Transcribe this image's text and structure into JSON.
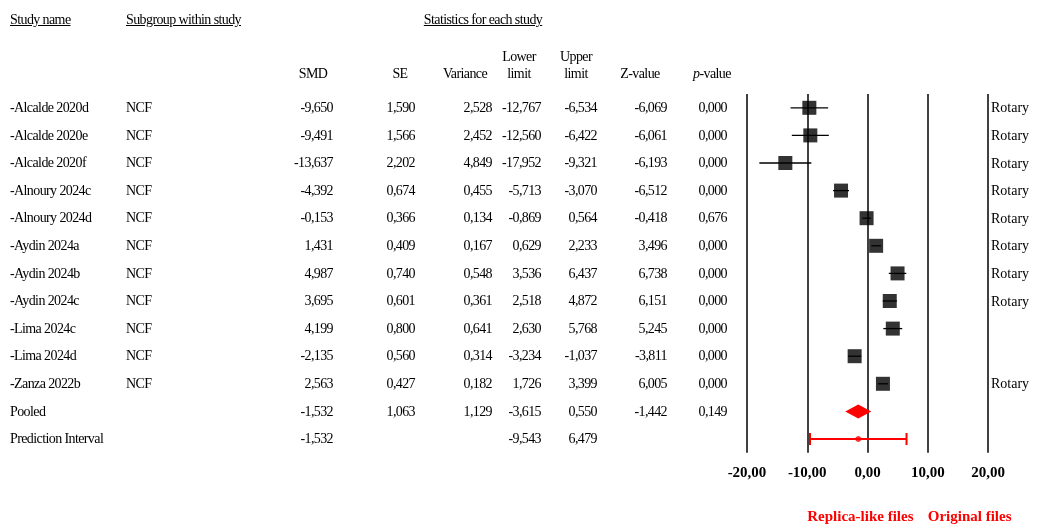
{
  "chart_data": [
    {
      "type": "other",
      "title": "Statistics for each study",
      "annotations": [
        "Study name",
        "Subgroup within study"
      ],
      "categories": [
        "SMD",
        "SE",
        "Variance",
        "Lower limit",
        "Upper limit",
        "Z-value",
        "p-value"
      ],
      "y_categories": [
        "-Alcalde 2020d",
        "-Alcalde 2020e",
        "-Alcalde 2020f",
        "-Alnoury 2024c",
        "-Alnoury 2024d",
        "-Aydin 2024a",
        "-Aydin 2024b",
        "-Aydin 2024c",
        "-Lima 2024c",
        "-Lima 2024d",
        "-Zanza 2022b",
        "Pooled",
        "Prediction Interval"
      ],
      "y2_categories": [
        "NCF",
        "NCF",
        "NCF",
        "NCF",
        "NCF",
        "NCF",
        "NCF",
        "NCF",
        "NCF",
        "NCF",
        "NCF",
        null,
        null
      ],
      "cell_labels": [
        [
          "-9,650",
          "1,590",
          "2,528",
          "-12,767",
          "-6,534",
          "-6,069",
          "0,000"
        ],
        [
          "-9,491",
          "1,566",
          "2,452",
          "-12,560",
          "-6,422",
          "-6,061",
          "0,000"
        ],
        [
          "-13,637",
          "2,202",
          "4,849",
          "-17,952",
          "-9,321",
          "-6,193",
          "0,000"
        ],
        [
          "-4,392",
          "0,674",
          "0,455",
          "-5,713",
          "-3,070",
          "-6,512",
          "0,000"
        ],
        [
          "-0,153",
          "0,366",
          "0,134",
          "-0,869",
          "0,564",
          "-0,418",
          "0,676"
        ],
        [
          "1,431",
          "0,409",
          "0,167",
          "0,629",
          "2,233",
          "3,496",
          "0,000"
        ],
        [
          "4,987",
          "0,740",
          "0,548",
          "3,536",
          "6,437",
          "6,738",
          "0,000"
        ],
        [
          "3,695",
          "0,601",
          "0,361",
          "2,518",
          "4,872",
          "6,151",
          "0,000"
        ],
        [
          "4,199",
          "0,800",
          "0,641",
          "2,630",
          "5,768",
          "5,245",
          "0,000"
        ],
        [
          "-2,135",
          "0,560",
          "0,314",
          "-3,234",
          "-1,037",
          "-3,811",
          "0,000"
        ],
        [
          "2,563",
          "0,427",
          "0,182",
          "1,726",
          "3,399",
          "6,005",
          "0,000"
        ],
        [
          "-1,532",
          "1,063",
          "1,129",
          "-3,615",
          "0,550",
          "-1,442",
          "0,149"
        ],
        [
          "-1,532",
          null,
          null,
          "-9,543",
          "6,479",
          null,
          null
        ]
      ]
    },
    {
      "type": "scatter",
      "orientation": "horizontal",
      "grid": "x",
      "categories": [
        "Rotary",
        "Rotary",
        "Rotary",
        "Rotary",
        "Rotary",
        "Rotary",
        "Rotary",
        "Rotary",
        null,
        null,
        "Rotary",
        null,
        null
      ],
      "xlim": [
        -20,
        20
      ],
      "xticks": [
        {
          "value": -20,
          "label": "-20,00"
        },
        {
          "value": -10,
          "label": "-10,00"
        },
        {
          "value": 0,
          "label": "0,00"
        },
        {
          "value": 10,
          "label": "10,00"
        },
        {
          "value": 20,
          "label": "20,00"
        }
      ],
      "annotations": [
        "Replica-like files",
        "Original files"
      ],
      "series": [
        {
          "type": "scatter",
          "marker": "square",
          "color": "#000000",
          "values": [
            -9.65,
            -9.491,
            -13.637,
            -4.392,
            -0.153,
            1.431,
            4.987,
            3.695,
            4.199,
            -2.135,
            2.563,
            null,
            null
          ],
          "errors": [
            [
              -12.767,
              -6.534
            ],
            [
              -12.56,
              -6.422
            ],
            [
              -17.952,
              -9.321
            ],
            [
              -5.713,
              -3.07
            ],
            [
              -0.869,
              0.564
            ],
            [
              0.629,
              2.233
            ],
            [
              3.536,
              6.437
            ],
            [
              2.518,
              4.872
            ],
            [
              2.63,
              5.768
            ],
            [
              -3.234,
              -1.037
            ],
            [
              1.726,
              3.399
            ],
            null,
            null
          ]
        },
        {
          "type": "scatter",
          "marker": "diamond",
          "color": "#ff0000",
          "values": [
            null,
            null,
            null,
            null,
            null,
            null,
            null,
            null,
            null,
            null,
            null,
            -1.532,
            null
          ]
        },
        {
          "type": "scatter",
          "marker": "circle",
          "color": "#ff0000",
          "values": [
            null,
            null,
            null,
            null,
            null,
            null,
            null,
            null,
            null,
            null,
            null,
            null,
            -1.532
          ],
          "errors": [
            null,
            null,
            null,
            null,
            null,
            null,
            null,
            null,
            null,
            null,
            null,
            null,
            [
              -9.543,
              6.479
            ]
          ]
        }
      ]
    }
  ]
}
